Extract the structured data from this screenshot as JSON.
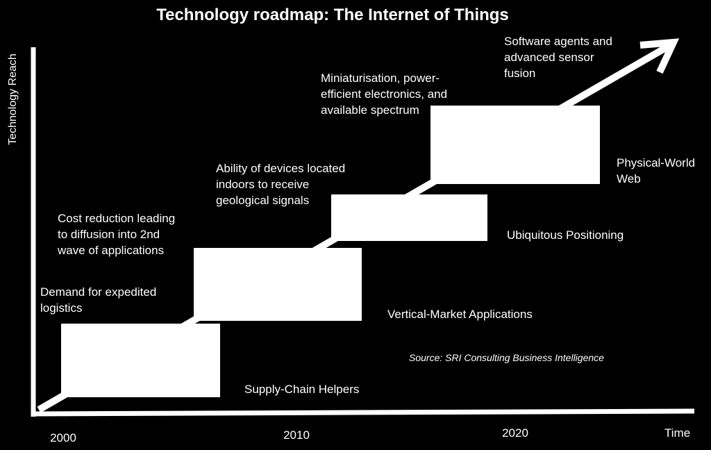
{
  "title": "Technology roadmap: The Internet of Things",
  "y_axis_label": "Technology Reach",
  "x_axis_label": "Time",
  "x_ticks": [
    "2000",
    "2010",
    "2020"
  ],
  "source": "Source: SRI Consulting Business Intelligence",
  "colors": {
    "background": "#000000",
    "foreground": "#ffffff"
  },
  "stages": [
    {
      "name": "Supply-Chain Helpers",
      "driver": [
        "Demand for expedited",
        "logistics"
      ]
    },
    {
      "name": "Vertical-Market Applications",
      "driver": [
        "Cost reduction leading",
        "to diffusion into 2nd",
        "wave of applications"
      ]
    },
    {
      "name": "Ubiquitous Positioning",
      "driver": [
        "Ability of devices located",
        "indoors to receive",
        "geological signals"
      ]
    },
    {
      "name": "Physical-World Web",
      "name_lines": [
        "Physical-World",
        "Web"
      ],
      "driver": [
        "Miniaturisation, power-",
        "efficient electronics, and",
        "available spectrum"
      ]
    }
  ],
  "arrow_driver": [
    "Software agents and",
    "advanced sensor",
    "fusion"
  ]
}
